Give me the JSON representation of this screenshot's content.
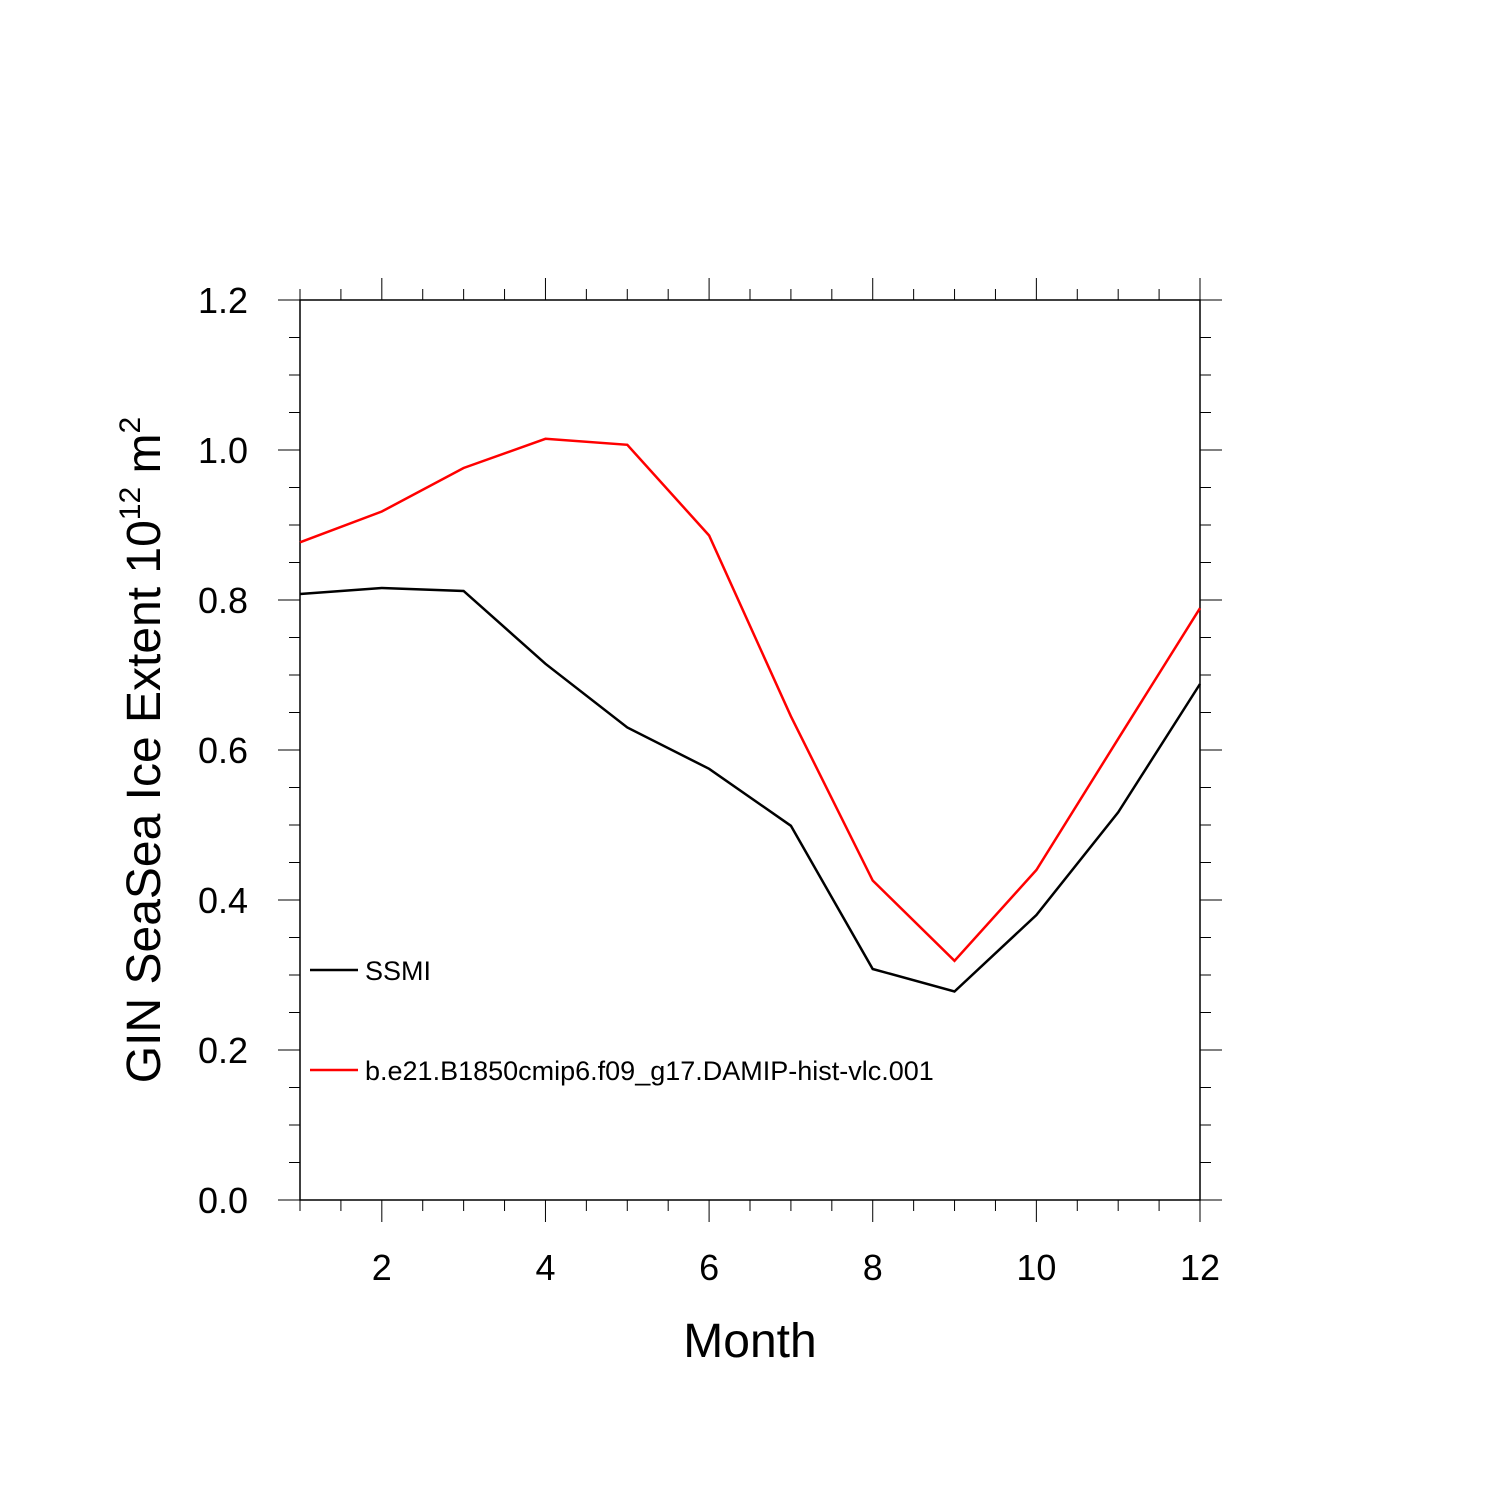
{
  "chart_data": {
    "type": "line",
    "title": "",
    "xlabel": "Month",
    "ylabel_main": "GIN SeaSea Ice Extent 10",
    "ylabel_exp": "12",
    "ylabel_unit": " m",
    "ylabel_unit_exp": "2",
    "xlim": [
      1,
      12
    ],
    "ylim": [
      0.0,
      1.2
    ],
    "xticks": [
      2,
      4,
      6,
      8,
      10,
      12
    ],
    "xtick_labels": [
      "2",
      "4",
      "6",
      "8",
      "10",
      "12"
    ],
    "yticks": [
      0.0,
      0.2,
      0.4,
      0.6,
      0.8,
      1.0,
      1.2
    ],
    "ytick_labels": [
      "0.0",
      "0.2",
      "0.4",
      "0.6",
      "0.8",
      "1.0",
      "1.2"
    ],
    "x": [
      1,
      2,
      3,
      4,
      5,
      6,
      7,
      8,
      9,
      10,
      11,
      12
    ],
    "series": [
      {
        "name": "SSMI",
        "color": "#000000",
        "values": [
          0.808,
          0.816,
          0.812,
          0.715,
          0.63,
          0.575,
          0.499,
          0.308,
          0.278,
          0.38,
          0.517,
          0.688
        ]
      },
      {
        "name": "b.e21.B1850cmip6.f09_g17.DAMIP-hist-vlc.001",
        "color": "#ff0000",
        "values": [
          0.877,
          0.918,
          0.976,
          1.015,
          1.007,
          0.886,
          0.645,
          0.426,
          0.319,
          0.44,
          0.615,
          0.789
        ]
      }
    ],
    "grid": false,
    "legend_position": "bottom-left"
  }
}
